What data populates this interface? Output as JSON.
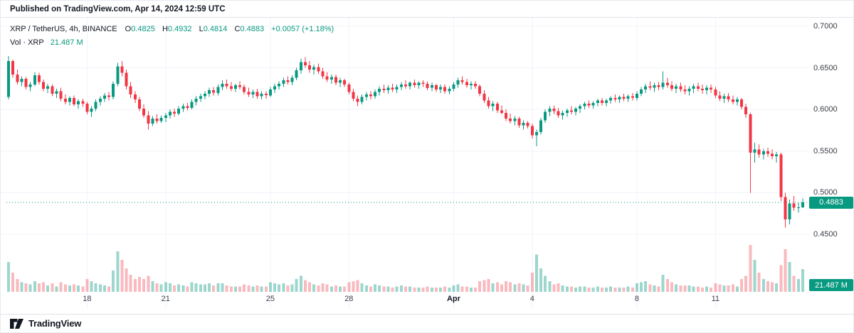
{
  "published": "Published on TradingView.com, Apr 14, 2024 12:59 UTC",
  "legend": {
    "symbol": "XRP / TetherUS, 4h, BINANCE",
    "ohlc": [
      {
        "label": "O",
        "value": "0.4825"
      },
      {
        "label": "H",
        "value": "0.4932"
      },
      {
        "label": "L",
        "value": "0.4814"
      },
      {
        "label": "C",
        "value": "0.4883"
      }
    ],
    "change": "+0.0057 (+1.18%)",
    "vol_label": "Vol · XRP",
    "vol_value": "21.487 M"
  },
  "axis": {
    "price_badge": "0.4883",
    "vol_badge": "21.487 M"
  },
  "footer": {
    "brand": "TradingView"
  },
  "colors": {
    "up": "#089981",
    "down": "#f23645",
    "up_vol": "rgba(8,153,129,0.40)",
    "down_vol": "rgba(242,54,69,0.35)",
    "grid": "#f0f3fa",
    "last_price_line": "#089981"
  },
  "chart_data": {
    "type": "candlestick+volume",
    "title": "XRP / TetherUS, 4h, BINANCE",
    "symbol": "XRP / TetherUS",
    "interval": "4h",
    "exchange": "BINANCE",
    "legend_position": "top-left",
    "grid": true,
    "y_axis_ticks": [
      "0.7000",
      "0.6500",
      "0.6000",
      "0.5500",
      "0.5000",
      "0.4500"
    ],
    "y_range": [
      0.44,
      0.71
    ],
    "x_ticks": [
      {
        "label": "18",
        "index": 18,
        "major": false
      },
      {
        "label": "21",
        "index": 36,
        "major": false
      },
      {
        "label": "25",
        "index": 60,
        "major": false
      },
      {
        "label": "28",
        "index": 78,
        "major": false
      },
      {
        "label": "Apr",
        "index": 102,
        "major": true
      },
      {
        "label": "4",
        "index": 120,
        "major": false
      },
      {
        "label": "8",
        "index": 144,
        "major": false
      },
      {
        "label": "11",
        "index": 162,
        "major": false
      }
    ],
    "last": {
      "o": 0.4825,
      "h": 0.4932,
      "l": 0.4814,
      "c": 0.4883,
      "change": "+0.0057 (+1.18%)",
      "volume_m": 21.487
    },
    "candles_format": [
      "open",
      "high",
      "low",
      "close",
      "volume_millions"
    ],
    "candles": [
      [
        0.615,
        0.664,
        0.612,
        0.658,
        28
      ],
      [
        0.658,
        0.66,
        0.638,
        0.642,
        18
      ],
      [
        0.642,
        0.648,
        0.63,
        0.633,
        12
      ],
      [
        0.633,
        0.64,
        0.628,
        0.637,
        9
      ],
      [
        0.637,
        0.639,
        0.624,
        0.627,
        8
      ],
      [
        0.627,
        0.633,
        0.622,
        0.63,
        7
      ],
      [
        0.63,
        0.645,
        0.628,
        0.641,
        10
      ],
      [
        0.641,
        0.644,
        0.63,
        0.633,
        8
      ],
      [
        0.633,
        0.636,
        0.622,
        0.625,
        9
      ],
      [
        0.625,
        0.631,
        0.62,
        0.628,
        6
      ],
      [
        0.628,
        0.63,
        0.616,
        0.619,
        8
      ],
      [
        0.619,
        0.625,
        0.614,
        0.622,
        5
      ],
      [
        0.622,
        0.626,
        0.61,
        0.613,
        9
      ],
      [
        0.613,
        0.618,
        0.606,
        0.609,
        7
      ],
      [
        0.609,
        0.616,
        0.605,
        0.614,
        6
      ],
      [
        0.614,
        0.617,
        0.604,
        0.606,
        7
      ],
      [
        0.606,
        0.612,
        0.601,
        0.61,
        6
      ],
      [
        0.61,
        0.613,
        0.603,
        0.607,
        5
      ],
      [
        0.607,
        0.609,
        0.594,
        0.597,
        12
      ],
      [
        0.597,
        0.604,
        0.591,
        0.601,
        10
      ],
      [
        0.601,
        0.612,
        0.598,
        0.609,
        8
      ],
      [
        0.609,
        0.616,
        0.605,
        0.613,
        7
      ],
      [
        0.613,
        0.62,
        0.609,
        0.617,
        6
      ],
      [
        0.617,
        0.621,
        0.611,
        0.615,
        5
      ],
      [
        0.615,
        0.634,
        0.612,
        0.631,
        20
      ],
      [
        0.631,
        0.656,
        0.628,
        0.652,
        38
      ],
      [
        0.652,
        0.658,
        0.64,
        0.644,
        30
      ],
      [
        0.644,
        0.648,
        0.624,
        0.628,
        22
      ],
      [
        0.628,
        0.633,
        0.614,
        0.618,
        16
      ],
      [
        0.618,
        0.622,
        0.608,
        0.612,
        12
      ],
      [
        0.612,
        0.615,
        0.598,
        0.601,
        14
      ],
      [
        0.601,
        0.606,
        0.59,
        0.593,
        12
      ],
      [
        0.593,
        0.598,
        0.576,
        0.583,
        15
      ],
      [
        0.583,
        0.592,
        0.58,
        0.589,
        10
      ],
      [
        0.589,
        0.594,
        0.583,
        0.586,
        8
      ],
      [
        0.586,
        0.593,
        0.584,
        0.59,
        7
      ],
      [
        0.59,
        0.596,
        0.585,
        0.593,
        9
      ],
      [
        0.593,
        0.6,
        0.589,
        0.597,
        8
      ],
      [
        0.597,
        0.601,
        0.591,
        0.595,
        6
      ],
      [
        0.595,
        0.604,
        0.593,
        0.601,
        7
      ],
      [
        0.601,
        0.607,
        0.597,
        0.604,
        6
      ],
      [
        0.604,
        0.608,
        0.599,
        0.602,
        5
      ],
      [
        0.602,
        0.612,
        0.6,
        0.609,
        9
      ],
      [
        0.609,
        0.616,
        0.605,
        0.613,
        8
      ],
      [
        0.613,
        0.619,
        0.609,
        0.616,
        7
      ],
      [
        0.616,
        0.622,
        0.612,
        0.619,
        7
      ],
      [
        0.619,
        0.626,
        0.615,
        0.623,
        8
      ],
      [
        0.623,
        0.627,
        0.617,
        0.62,
        6
      ],
      [
        0.62,
        0.63,
        0.617,
        0.627,
        8
      ],
      [
        0.627,
        0.635,
        0.623,
        0.631,
        8
      ],
      [
        0.631,
        0.636,
        0.625,
        0.628,
        6
      ],
      [
        0.628,
        0.633,
        0.622,
        0.625,
        5
      ],
      [
        0.625,
        0.631,
        0.621,
        0.629,
        5
      ],
      [
        0.629,
        0.634,
        0.624,
        0.627,
        5
      ],
      [
        0.627,
        0.63,
        0.618,
        0.621,
        7
      ],
      [
        0.621,
        0.626,
        0.615,
        0.618,
        6
      ],
      [
        0.618,
        0.624,
        0.614,
        0.621,
        5
      ],
      [
        0.621,
        0.625,
        0.613,
        0.616,
        6
      ],
      [
        0.616,
        0.622,
        0.612,
        0.619,
        5
      ],
      [
        0.619,
        0.622,
        0.613,
        0.617,
        5
      ],
      [
        0.617,
        0.627,
        0.615,
        0.624,
        9
      ],
      [
        0.624,
        0.631,
        0.62,
        0.628,
        8
      ],
      [
        0.628,
        0.634,
        0.624,
        0.631,
        7
      ],
      [
        0.631,
        0.638,
        0.627,
        0.635,
        8
      ],
      [
        0.635,
        0.64,
        0.63,
        0.633,
        6
      ],
      [
        0.633,
        0.641,
        0.629,
        0.638,
        7
      ],
      [
        0.638,
        0.65,
        0.635,
        0.647,
        12
      ],
      [
        0.647,
        0.661,
        0.643,
        0.657,
        15
      ],
      [
        0.657,
        0.663,
        0.65,
        0.653,
        11
      ],
      [
        0.653,
        0.658,
        0.644,
        0.648,
        9
      ],
      [
        0.648,
        0.654,
        0.642,
        0.651,
        7
      ],
      [
        0.651,
        0.655,
        0.643,
        0.646,
        6
      ],
      [
        0.646,
        0.65,
        0.637,
        0.64,
        8
      ],
      [
        0.64,
        0.645,
        0.633,
        0.636,
        7
      ],
      [
        0.636,
        0.642,
        0.631,
        0.639,
        5
      ],
      [
        0.639,
        0.642,
        0.629,
        0.632,
        6
      ],
      [
        0.632,
        0.638,
        0.627,
        0.635,
        5
      ],
      [
        0.635,
        0.637,
        0.627,
        0.63,
        5
      ],
      [
        0.63,
        0.632,
        0.618,
        0.621,
        9
      ],
      [
        0.621,
        0.625,
        0.61,
        0.613,
        10
      ],
      [
        0.613,
        0.617,
        0.604,
        0.609,
        11
      ],
      [
        0.609,
        0.618,
        0.606,
        0.615,
        8
      ],
      [
        0.615,
        0.621,
        0.611,
        0.618,
        6
      ],
      [
        0.618,
        0.622,
        0.612,
        0.616,
        5
      ],
      [
        0.616,
        0.624,
        0.613,
        0.621,
        7
      ],
      [
        0.621,
        0.628,
        0.617,
        0.625,
        6
      ],
      [
        0.625,
        0.63,
        0.62,
        0.623,
        5
      ],
      [
        0.623,
        0.629,
        0.619,
        0.626,
        5
      ],
      [
        0.626,
        0.631,
        0.621,
        0.624,
        4
      ],
      [
        0.624,
        0.63,
        0.62,
        0.627,
        5
      ],
      [
        0.627,
        0.633,
        0.623,
        0.63,
        6
      ],
      [
        0.63,
        0.635,
        0.625,
        0.628,
        5
      ],
      [
        0.628,
        0.634,
        0.624,
        0.632,
        5
      ],
      [
        0.632,
        0.636,
        0.626,
        0.629,
        4
      ],
      [
        0.629,
        0.634,
        0.625,
        0.632,
        4
      ],
      [
        0.632,
        0.635,
        0.627,
        0.631,
        4
      ],
      [
        0.631,
        0.634,
        0.623,
        0.626,
        5
      ],
      [
        0.626,
        0.632,
        0.622,
        0.629,
        4
      ],
      [
        0.629,
        0.631,
        0.621,
        0.624,
        4
      ],
      [
        0.624,
        0.63,
        0.62,
        0.627,
        4
      ],
      [
        0.627,
        0.63,
        0.619,
        0.622,
        5
      ],
      [
        0.622,
        0.628,
        0.618,
        0.625,
        4
      ],
      [
        0.625,
        0.633,
        0.622,
        0.63,
        6
      ],
      [
        0.63,
        0.638,
        0.626,
        0.635,
        7
      ],
      [
        0.635,
        0.64,
        0.63,
        0.633,
        5
      ],
      [
        0.633,
        0.637,
        0.626,
        0.629,
        5
      ],
      [
        0.629,
        0.634,
        0.624,
        0.631,
        4
      ],
      [
        0.631,
        0.634,
        0.625,
        0.628,
        4
      ],
      [
        0.628,
        0.63,
        0.616,
        0.619,
        10
      ],
      [
        0.619,
        0.623,
        0.608,
        0.611,
        11
      ],
      [
        0.611,
        0.615,
        0.601,
        0.604,
        12
      ],
      [
        0.604,
        0.61,
        0.598,
        0.607,
        8
      ],
      [
        0.607,
        0.609,
        0.596,
        0.599,
        9
      ],
      [
        0.599,
        0.605,
        0.594,
        0.596,
        7
      ],
      [
        0.596,
        0.6,
        0.586,
        0.589,
        10
      ],
      [
        0.589,
        0.595,
        0.583,
        0.586,
        9
      ],
      [
        0.586,
        0.592,
        0.581,
        0.589,
        7
      ],
      [
        0.589,
        0.591,
        0.578,
        0.581,
        8
      ],
      [
        0.581,
        0.587,
        0.576,
        0.584,
        7
      ],
      [
        0.584,
        0.586,
        0.577,
        0.58,
        6
      ],
      [
        0.58,
        0.583,
        0.565,
        0.569,
        18
      ],
      [
        0.569,
        0.576,
        0.556,
        0.573,
        35
      ],
      [
        0.573,
        0.59,
        0.57,
        0.587,
        22
      ],
      [
        0.587,
        0.6,
        0.584,
        0.597,
        15
      ],
      [
        0.597,
        0.604,
        0.592,
        0.601,
        10
      ],
      [
        0.601,
        0.605,
        0.594,
        0.598,
        7
      ],
      [
        0.598,
        0.602,
        0.59,
        0.593,
        8
      ],
      [
        0.593,
        0.599,
        0.588,
        0.596,
        6
      ],
      [
        0.596,
        0.601,
        0.591,
        0.599,
        5
      ],
      [
        0.599,
        0.604,
        0.594,
        0.597,
        5
      ],
      [
        0.597,
        0.603,
        0.593,
        0.601,
        4
      ],
      [
        0.601,
        0.606,
        0.596,
        0.604,
        5
      ],
      [
        0.604,
        0.609,
        0.6,
        0.607,
        5
      ],
      [
        0.607,
        0.611,
        0.602,
        0.605,
        4
      ],
      [
        0.605,
        0.61,
        0.601,
        0.608,
        4
      ],
      [
        0.608,
        0.613,
        0.604,
        0.611,
        5
      ],
      [
        0.611,
        0.614,
        0.605,
        0.608,
        4
      ],
      [
        0.608,
        0.613,
        0.604,
        0.611,
        4
      ],
      [
        0.611,
        0.616,
        0.607,
        0.614,
        5
      ],
      [
        0.614,
        0.618,
        0.609,
        0.612,
        4
      ],
      [
        0.612,
        0.617,
        0.608,
        0.615,
        4
      ],
      [
        0.615,
        0.619,
        0.61,
        0.613,
        4
      ],
      [
        0.613,
        0.618,
        0.609,
        0.616,
        5
      ],
      [
        0.616,
        0.62,
        0.611,
        0.614,
        4
      ],
      [
        0.614,
        0.622,
        0.611,
        0.619,
        8
      ],
      [
        0.619,
        0.627,
        0.616,
        0.624,
        9
      ],
      [
        0.624,
        0.631,
        0.62,
        0.628,
        10
      ],
      [
        0.628,
        0.634,
        0.623,
        0.626,
        7
      ],
      [
        0.626,
        0.632,
        0.621,
        0.629,
        6
      ],
      [
        0.629,
        0.633,
        0.623,
        0.627,
        5
      ],
      [
        0.627,
        0.646,
        0.624,
        0.632,
        16
      ],
      [
        0.632,
        0.638,
        0.626,
        0.629,
        12
      ],
      [
        0.629,
        0.634,
        0.622,
        0.625,
        9
      ],
      [
        0.625,
        0.631,
        0.62,
        0.628,
        7
      ],
      [
        0.628,
        0.632,
        0.621,
        0.624,
        6
      ],
      [
        0.624,
        0.629,
        0.618,
        0.622,
        6
      ],
      [
        0.622,
        0.628,
        0.617,
        0.625,
        6
      ],
      [
        0.625,
        0.631,
        0.62,
        0.628,
        5
      ],
      [
        0.628,
        0.632,
        0.622,
        0.625,
        5
      ],
      [
        0.625,
        0.63,
        0.619,
        0.623,
        4
      ],
      [
        0.623,
        0.629,
        0.618,
        0.626,
        5
      ],
      [
        0.626,
        0.63,
        0.62,
        0.624,
        4
      ],
      [
        0.624,
        0.627,
        0.614,
        0.617,
        8
      ],
      [
        0.617,
        0.622,
        0.61,
        0.613,
        7
      ],
      [
        0.613,
        0.619,
        0.608,
        0.616,
        6
      ],
      [
        0.616,
        0.62,
        0.609,
        0.612,
        6
      ],
      [
        0.612,
        0.617,
        0.606,
        0.609,
        7
      ],
      [
        0.609,
        0.615,
        0.605,
        0.612,
        5
      ],
      [
        0.612,
        0.614,
        0.6,
        0.603,
        12
      ],
      [
        0.603,
        0.607,
        0.59,
        0.594,
        15
      ],
      [
        0.594,
        0.596,
        0.5,
        0.548,
        44
      ],
      [
        0.548,
        0.56,
        0.536,
        0.552,
        30
      ],
      [
        0.552,
        0.558,
        0.542,
        0.546,
        18
      ],
      [
        0.546,
        0.553,
        0.54,
        0.55,
        12
      ],
      [
        0.55,
        0.554,
        0.543,
        0.547,
        10
      ],
      [
        0.547,
        0.552,
        0.54,
        0.544,
        9
      ],
      [
        0.544,
        0.549,
        0.536,
        0.546,
        8
      ],
      [
        0.546,
        0.548,
        0.49,
        0.495,
        25
      ],
      [
        0.495,
        0.5,
        0.458,
        0.468,
        40
      ],
      [
        0.468,
        0.492,
        0.462,
        0.487,
        28
      ],
      [
        0.487,
        0.496,
        0.478,
        0.482,
        15
      ],
      [
        0.482,
        0.488,
        0.476,
        0.4825,
        12
      ],
      [
        0.4825,
        0.4932,
        0.4814,
        0.4883,
        21.487
      ]
    ]
  }
}
